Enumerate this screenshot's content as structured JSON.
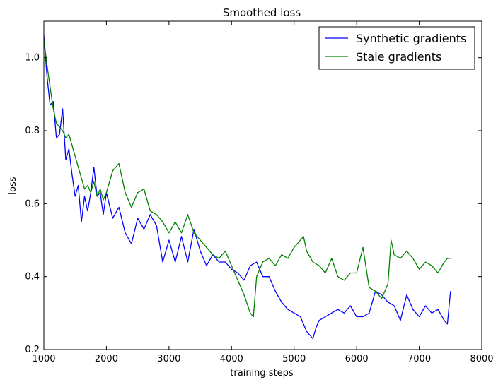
{
  "chart_data": {
    "type": "line",
    "title": "Smoothed loss",
    "xlabel": "training steps",
    "ylabel": "loss",
    "xlim": [
      1000,
      8000
    ],
    "ylim": [
      0.2,
      1.1
    ],
    "xticks": [
      1000,
      2000,
      3000,
      4000,
      5000,
      6000,
      7000,
      8000
    ],
    "xtick_labels": [
      "1000",
      "2000",
      "3000",
      "4000",
      "5000",
      "6000",
      "7000",
      "8000"
    ],
    "yticks": [
      0.2,
      0.4,
      0.6,
      0.8,
      1.0
    ],
    "ytick_labels": [
      "0.2",
      "0.4",
      "0.6",
      "0.8",
      "1.0"
    ],
    "grid": false,
    "legend_position": "top-right",
    "series": [
      {
        "name": "Synthetic gradients",
        "color": "#0000ff",
        "x": [
          1000,
          1050,
          1100,
          1150,
          1200,
          1250,
          1300,
          1350,
          1400,
          1450,
          1500,
          1550,
          1600,
          1650,
          1700,
          1750,
          1800,
          1850,
          1900,
          1950,
          2000,
          2100,
          2200,
          2300,
          2400,
          2500,
          2600,
          2700,
          2800,
          2900,
          3000,
          3100,
          3200,
          3300,
          3400,
          3500,
          3600,
          3700,
          3800,
          3900,
          4000,
          4100,
          4200,
          4300,
          4400,
          4500,
          4600,
          4700,
          4800,
          4900,
          5000,
          5100,
          5200,
          5300,
          5350,
          5400,
          5500,
          5600,
          5700,
          5800,
          5900,
          6000,
          6100,
          6200,
          6300,
          6400,
          6500,
          6600,
          6700,
          6800,
          6900,
          7000,
          7100,
          7200,
          7300,
          7400,
          7450,
          7500
        ],
        "values": [
          1.06,
          0.95,
          0.87,
          0.88,
          0.78,
          0.79,
          0.86,
          0.72,
          0.75,
          0.68,
          0.62,
          0.65,
          0.55,
          0.62,
          0.58,
          0.63,
          0.7,
          0.62,
          0.63,
          0.57,
          0.63,
          0.56,
          0.59,
          0.52,
          0.49,
          0.56,
          0.53,
          0.57,
          0.54,
          0.44,
          0.5,
          0.44,
          0.51,
          0.44,
          0.53,
          0.47,
          0.43,
          0.46,
          0.44,
          0.44,
          0.42,
          0.41,
          0.39,
          0.43,
          0.44,
          0.4,
          0.4,
          0.36,
          0.33,
          0.31,
          0.3,
          0.29,
          0.25,
          0.23,
          0.26,
          0.28,
          0.29,
          0.3,
          0.31,
          0.3,
          0.32,
          0.29,
          0.29,
          0.3,
          0.36,
          0.35,
          0.33,
          0.32,
          0.28,
          0.35,
          0.31,
          0.29,
          0.32,
          0.3,
          0.31,
          0.28,
          0.27,
          0.36
        ]
      },
      {
        "name": "Stale gradients",
        "color": "#008000",
        "x": [
          1000,
          1050,
          1100,
          1150,
          1200,
          1250,
          1300,
          1350,
          1400,
          1450,
          1500,
          1550,
          1600,
          1650,
          1700,
          1750,
          1800,
          1850,
          1900,
          1950,
          2000,
          2100,
          2200,
          2300,
          2400,
          2500,
          2600,
          2700,
          2800,
          2900,
          3000,
          3100,
          3200,
          3300,
          3400,
          3500,
          3600,
          3700,
          3800,
          3900,
          4000,
          4100,
          4200,
          4300,
          4350,
          4400,
          4500,
          4600,
          4700,
          4800,
          4900,
          5000,
          5100,
          5150,
          5200,
          5300,
          5400,
          5500,
          5600,
          5700,
          5800,
          5900,
          6000,
          6100,
          6200,
          6300,
          6400,
          6500,
          6550,
          6600,
          6700,
          6800,
          6900,
          7000,
          7100,
          7200,
          7300,
          7400,
          7450,
          7500
        ],
        "values": [
          1.05,
          0.98,
          0.92,
          0.86,
          0.82,
          0.81,
          0.8,
          0.78,
          0.79,
          0.76,
          0.73,
          0.7,
          0.67,
          0.64,
          0.65,
          0.63,
          0.66,
          0.62,
          0.64,
          0.61,
          0.63,
          0.69,
          0.71,
          0.63,
          0.59,
          0.63,
          0.64,
          0.58,
          0.57,
          0.55,
          0.52,
          0.55,
          0.52,
          0.57,
          0.52,
          0.5,
          0.48,
          0.46,
          0.45,
          0.47,
          0.43,
          0.39,
          0.35,
          0.3,
          0.29,
          0.4,
          0.44,
          0.45,
          0.43,
          0.46,
          0.45,
          0.48,
          0.5,
          0.51,
          0.47,
          0.44,
          0.43,
          0.41,
          0.45,
          0.4,
          0.39,
          0.41,
          0.41,
          0.48,
          0.37,
          0.36,
          0.34,
          0.38,
          0.5,
          0.46,
          0.45,
          0.47,
          0.45,
          0.42,
          0.44,
          0.43,
          0.41,
          0.44,
          0.45,
          0.45
        ]
      }
    ]
  }
}
